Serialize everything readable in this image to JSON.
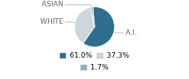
{
  "chart_data": {
    "type": "pie",
    "categories": [
      "A.I.",
      "WHITE",
      "ASIAN"
    ],
    "values": [
      61.0,
      37.3,
      1.7
    ],
    "value_labels": [
      "61.0%",
      "37.3%",
      "1.7%"
    ],
    "colors": [
      "#2e6e8e",
      "#ccd6dd",
      "#96adb8"
    ],
    "legend": "bottom"
  }
}
